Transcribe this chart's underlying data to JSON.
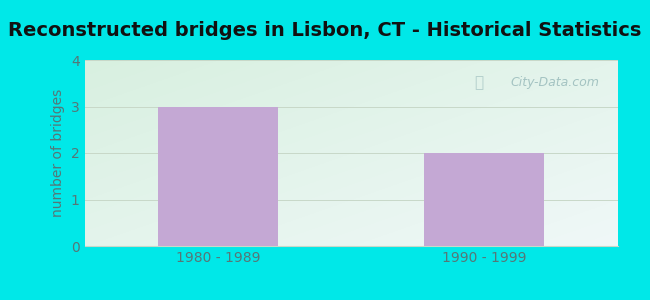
{
  "title": "Reconstructed bridges in Lisbon, CT - Historical Statistics",
  "categories": [
    "1980 - 1989",
    "1990 - 1999"
  ],
  "values": [
    3,
    2
  ],
  "bar_color": "#c4a8d4",
  "bar_edgecolor": "#c4a8d4",
  "ylabel": "number of bridges",
  "ylabel_color": "#557777",
  "xlabel_color": "#557777",
  "title_color": "#111111",
  "ylim": [
    0,
    4
  ],
  "yticks": [
    0,
    1,
    2,
    3,
    4
  ],
  "background_outer": "#00e8e8",
  "grad_top_left": "#d8f0e0",
  "grad_bottom_right": "#e8f4f8",
  "grid_color": "#c8d8c8",
  "tick_color": "#557777",
  "title_fontsize": 14,
  "axis_fontsize": 10,
  "tick_fontsize": 10,
  "watermark_text": "City-Data.com",
  "watermark_color": "#99bbbb",
  "bar_width": 0.45,
  "xlim": [
    -0.5,
    1.5
  ]
}
